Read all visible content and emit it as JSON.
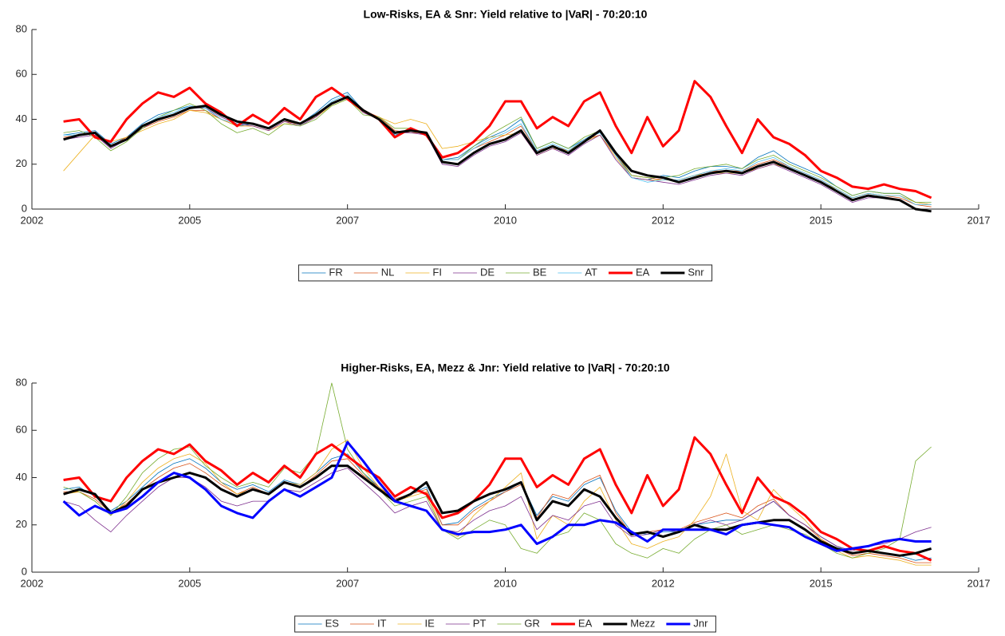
{
  "chart_data": [
    {
      "type": "line",
      "title": "Low-Risks, EA & Snr: Yield relative to |VaR| - 70:20:10",
      "legend": "south-outside",
      "x": [
        2002.5,
        2002.75,
        2003,
        2003.25,
        2003.5,
        2003.75,
        2004,
        2004.25,
        2004.5,
        2004.75,
        2005,
        2005.25,
        2005.5,
        2005.75,
        2006,
        2006.25,
        2006.5,
        2006.75,
        2007,
        2007.25,
        2007.5,
        2007.75,
        2008,
        2008.25,
        2008.5,
        2008.75,
        2009,
        2009.25,
        2009.5,
        2009.75,
        2010,
        2010.25,
        2010.5,
        2010.75,
        2011,
        2011.25,
        2011.5,
        2011.75,
        2012,
        2012.25,
        2012.5,
        2012.75,
        2013,
        2013.25,
        2013.5,
        2013.75,
        2014,
        2014.25,
        2014.5,
        2014.75,
        2015,
        2015.25,
        2015.5,
        2015.75,
        2016,
        2016.25
      ],
      "xlim": [
        2002,
        2017
      ],
      "xticks": [
        2002,
        {
          "value": 2004.5,
          "label": "2005"
        },
        2007,
        {
          "value": 2009.5,
          "label": "2010"
        },
        2012,
        {
          "value": 2014.5,
          "label": "2015"
        },
        2017
      ],
      "ylim": [
        0,
        80
      ],
      "yticks": [
        0,
        20,
        40,
        60,
        80
      ],
      "series": [
        {
          "name": "FR",
          "color": "#0072BD",
          "linewidth": 0.8,
          "values": [
            33,
            34,
            35,
            29,
            32,
            38,
            42,
            44,
            46,
            45,
            40,
            37,
            38,
            36,
            40,
            38,
            43,
            49,
            52,
            44,
            40,
            33,
            35,
            33,
            22,
            23,
            28,
            32,
            35,
            40,
            27,
            30,
            27,
            31,
            35,
            24,
            14,
            13,
            15,
            14,
            17,
            19,
            19,
            18,
            23,
            26,
            21,
            18,
            15,
            10,
            6,
            8,
            7,
            7,
            3,
            2
          ]
        },
        {
          "name": "NL",
          "color": "#D95319",
          "linewidth": 0.8,
          "values": [
            32,
            33,
            34,
            28,
            32,
            36,
            39,
            41,
            44,
            44,
            40,
            37,
            37,
            35,
            39,
            38,
            41,
            47,
            50,
            44,
            41,
            35,
            34,
            34,
            22,
            22,
            27,
            30,
            33,
            37,
            26,
            28,
            26,
            31,
            33,
            24,
            15,
            14,
            13,
            13,
            15,
            17,
            17,
            17,
            20,
            22,
            19,
            16,
            13,
            9,
            5,
            7,
            6,
            5,
            2,
            1
          ]
        },
        {
          "name": "FI",
          "color": "#EDB120",
          "linewidth": 0.8,
          "values": [
            17,
            25,
            33,
            30,
            32,
            35,
            38,
            40,
            44,
            43,
            40,
            37,
            37,
            35,
            38,
            38,
            41,
            46,
            49,
            43,
            41,
            38,
            40,
            38,
            27,
            28,
            30,
            32,
            33,
            34,
            24,
            27,
            26,
            30,
            33,
            23,
            14,
            13,
            13,
            13,
            15,
            16,
            16,
            16,
            18,
            20,
            18,
            15,
            12,
            9,
            5,
            7,
            6,
            6,
            3,
            2
          ]
        },
        {
          "name": "DE",
          "color": "#7E2F8E",
          "linewidth": 0.8,
          "values": [
            31,
            32,
            33,
            27,
            31,
            36,
            40,
            42,
            45,
            45,
            41,
            38,
            37,
            35,
            39,
            37,
            41,
            47,
            50,
            43,
            40,
            34,
            34,
            33,
            20,
            19,
            24,
            28,
            30,
            34,
            24,
            27,
            24,
            29,
            33,
            22,
            14,
            13,
            12,
            11,
            13,
            15,
            16,
            15,
            18,
            20,
            17,
            14,
            11,
            7,
            3,
            5,
            5,
            4,
            0,
            -1
          ]
        },
        {
          "name": "BE",
          "color": "#77AC30",
          "linewidth": 0.8,
          "values": [
            34,
            35,
            32,
            26,
            30,
            36,
            41,
            44,
            47,
            44,
            38,
            34,
            36,
            33,
            38,
            37,
            40,
            46,
            49,
            42,
            41,
            36,
            36,
            34,
            22,
            22,
            28,
            33,
            37,
            41,
            27,
            30,
            27,
            32,
            35,
            25,
            15,
            14,
            14,
            15,
            18,
            19,
            20,
            18,
            22,
            24,
            20,
            17,
            14,
            10,
            6,
            8,
            7,
            7,
            3,
            3
          ]
        },
        {
          "name": "AT",
          "color": "#4DBEEE",
          "linewidth": 0.8,
          "values": [
            33,
            33,
            34,
            28,
            31,
            37,
            41,
            43,
            46,
            45,
            40,
            38,
            38,
            36,
            40,
            38,
            42,
            48,
            51,
            44,
            40,
            34,
            35,
            34,
            22,
            22,
            27,
            31,
            34,
            38,
            26,
            29,
            26,
            31,
            34,
            24,
            14,
            12,
            13,
            13,
            15,
            17,
            18,
            17,
            21,
            23,
            19,
            16,
            13,
            9,
            5,
            7,
            6,
            6,
            2,
            2
          ]
        },
        {
          "name": "EA",
          "color": "#FF0000",
          "linewidth": 3,
          "values": [
            39,
            40,
            32,
            30,
            40,
            47,
            52,
            50,
            54,
            47,
            43,
            37,
            42,
            38,
            45,
            40,
            50,
            54,
            49,
            44,
            40,
            32,
            36,
            33,
            23,
            25,
            30,
            37,
            48,
            48,
            36,
            41,
            37,
            48,
            52,
            37,
            25,
            41,
            28,
            35,
            57,
            50,
            37,
            25,
            40,
            32,
            29,
            24,
            17,
            14,
            10,
            9,
            11,
            9,
            8,
            5
          ]
        },
        {
          "name": "Snr",
          "color": "#000000",
          "linewidth": 3,
          "values": [
            31,
            33,
            34,
            28,
            31,
            37,
            40,
            42,
            45,
            46,
            42,
            39,
            38,
            36,
            40,
            38,
            42,
            47,
            50,
            44,
            40,
            34,
            35,
            34,
            21,
            20,
            25,
            29,
            31,
            35,
            25,
            28,
            25,
            30,
            35,
            25,
            17,
            15,
            14,
            12,
            14,
            16,
            17,
            16,
            19,
            21,
            18,
            15,
            12,
            8,
            4,
            6,
            5,
            4,
            0,
            -1
          ]
        }
      ]
    },
    {
      "type": "line",
      "title": "Higher-Risks, EA, Mezz & Jnr: Yield relative to |VaR| - 70:20:10",
      "legend": "south-outside",
      "x": [
        2002.5,
        2002.75,
        2003,
        2003.25,
        2003.5,
        2003.75,
        2004,
        2004.25,
        2004.5,
        2004.75,
        2005,
        2005.25,
        2005.5,
        2005.75,
        2006,
        2006.25,
        2006.5,
        2006.75,
        2007,
        2007.25,
        2007.5,
        2007.75,
        2008,
        2008.25,
        2008.5,
        2008.75,
        2009,
        2009.25,
        2009.5,
        2009.75,
        2010,
        2010.25,
        2010.5,
        2010.75,
        2011,
        2011.25,
        2011.5,
        2011.75,
        2012,
        2012.25,
        2012.5,
        2012.75,
        2013,
        2013.25,
        2013.5,
        2013.75,
        2014,
        2014.25,
        2014.5,
        2014.75,
        2015,
        2015.25,
        2015.5,
        2015.75,
        2016,
        2016.25
      ],
      "xlim": [
        2002,
        2017
      ],
      "xticks": [
        2002,
        {
          "value": 2004.5,
          "label": "2005"
        },
        2007,
        {
          "value": 2009.5,
          "label": "2010"
        },
        2012,
        {
          "value": 2014.5,
          "label": "2015"
        },
        2017
      ],
      "ylim": [
        0,
        80
      ],
      "yticks": [
        0,
        20,
        40,
        60,
        80
      ],
      "series": [
        {
          "name": "ES",
          "color": "#0072BD",
          "linewidth": 0.8,
          "values": [
            35,
            36,
            32,
            26,
            30,
            36,
            42,
            46,
            48,
            44,
            38,
            35,
            37,
            34,
            39,
            37,
            42,
            48,
            50,
            42,
            36,
            30,
            33,
            36,
            20,
            21,
            27,
            31,
            34,
            38,
            24,
            32,
            30,
            37,
            40,
            26,
            17,
            16,
            17,
            17,
            20,
            21,
            22,
            22,
            26,
            30,
            24,
            20,
            15,
            11,
            8,
            9,
            8,
            7,
            5,
            6
          ]
        },
        {
          "name": "IT",
          "color": "#D95319",
          "linewidth": 0.8,
          "values": [
            34,
            34,
            31,
            25,
            29,
            35,
            40,
            44,
            46,
            42,
            37,
            33,
            36,
            33,
            38,
            36,
            41,
            47,
            48,
            41,
            36,
            31,
            33,
            35,
            20,
            20,
            26,
            30,
            34,
            37,
            23,
            33,
            31,
            38,
            41,
            25,
            16,
            17,
            18,
            18,
            21,
            23,
            25,
            23,
            28,
            31,
            24,
            20,
            14,
            10,
            7,
            8,
            7,
            6,
            4,
            4
          ]
        },
        {
          "name": "IE",
          "color": "#EDB120",
          "linewidth": 0.8,
          "values": [
            33,
            34,
            30,
            24,
            30,
            38,
            44,
            48,
            50,
            46,
            38,
            33,
            35,
            33,
            38,
            37,
            42,
            52,
            56,
            44,
            36,
            30,
            32,
            34,
            18,
            15,
            24,
            30,
            36,
            42,
            14,
            24,
            20,
            30,
            36,
            22,
            12,
            10,
            13,
            15,
            22,
            32,
            50,
            26,
            22,
            35,
            28,
            22,
            14,
            9,
            6,
            7,
            6,
            5,
            3,
            3
          ]
        },
        {
          "name": "PT",
          "color": "#7E2F8E",
          "linewidth": 0.8,
          "values": [
            30,
            28,
            22,
            17,
            24,
            30,
            36,
            40,
            40,
            36,
            30,
            28,
            30,
            30,
            35,
            34,
            38,
            42,
            44,
            38,
            32,
            25,
            28,
            30,
            18,
            17,
            22,
            26,
            28,
            32,
            18,
            24,
            22,
            28,
            30,
            20,
            15,
            16,
            18,
            17,
            20,
            22,
            20,
            22,
            26,
            30,
            24,
            20,
            15,
            11,
            9,
            11,
            12,
            14,
            17,
            19
          ]
        },
        {
          "name": "GR",
          "color": "#77AC30",
          "linewidth": 0.8,
          "values": [
            36,
            34,
            30,
            24,
            32,
            42,
            48,
            52,
            53,
            45,
            40,
            36,
            38,
            36,
            44,
            42,
            50,
            80,
            52,
            42,
            35,
            28,
            30,
            32,
            18,
            14,
            18,
            22,
            20,
            10,
            8,
            15,
            17,
            25,
            22,
            12,
            8,
            6,
            10,
            8,
            14,
            18,
            20,
            16,
            18,
            20,
            18,
            16,
            12,
            8,
            6,
            8,
            10,
            14,
            47,
            53
          ]
        },
        {
          "name": "EA",
          "color": "#FF0000",
          "linewidth": 3,
          "values": [
            39,
            40,
            32,
            30,
            40,
            47,
            52,
            50,
            54,
            47,
            43,
            37,
            42,
            38,
            45,
            40,
            50,
            54,
            49,
            44,
            40,
            32,
            36,
            33,
            23,
            25,
            30,
            37,
            48,
            48,
            36,
            41,
            37,
            48,
            52,
            37,
            25,
            41,
            28,
            35,
            57,
            50,
            37,
            25,
            40,
            32,
            29,
            24,
            17,
            14,
            10,
            9,
            11,
            9,
            8,
            5
          ]
        },
        {
          "name": "Mezz",
          "color": "#000000",
          "linewidth": 3,
          "values": [
            33,
            35,
            33,
            25,
            28,
            35,
            38,
            40,
            42,
            40,
            35,
            32,
            35,
            33,
            38,
            36,
            40,
            45,
            45,
            40,
            35,
            30,
            33,
            38,
            25,
            26,
            30,
            33,
            35,
            38,
            22,
            30,
            28,
            35,
            32,
            23,
            16,
            17,
            15,
            17,
            20,
            18,
            18,
            20,
            21,
            22,
            22,
            18,
            13,
            10,
            8,
            9,
            8,
            7,
            8,
            10
          ]
        },
        {
          "name": "Jnr",
          "color": "#0000FF",
          "linewidth": 3,
          "values": [
            30,
            24,
            28,
            25,
            27,
            32,
            38,
            42,
            40,
            35,
            28,
            25,
            23,
            30,
            35,
            32,
            36,
            40,
            55,
            47,
            38,
            30,
            28,
            26,
            18,
            16,
            17,
            17,
            18,
            20,
            12,
            15,
            20,
            20,
            22,
            21,
            17,
            13,
            18,
            18,
            18,
            18,
            16,
            20,
            21,
            20,
            19,
            15,
            12,
            9,
            10,
            11,
            13,
            14,
            13,
            13
          ]
        }
      ]
    }
  ]
}
